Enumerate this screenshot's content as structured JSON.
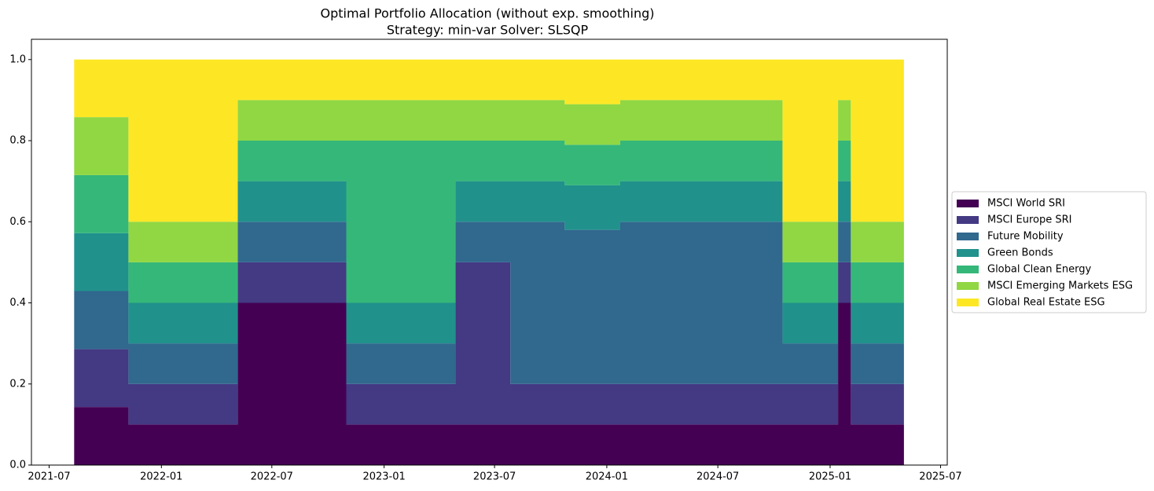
{
  "chart_data": {
    "type": "stacked-step-area",
    "title": "Optimal Portfolio Allocation (without exp. smoothing)",
    "subtitle": "Strategy: min-var Solver: SLSQP",
    "x": [
      "2021-08-11",
      "2021-11-08",
      "2022-05-06",
      "2022-10-31",
      "2023-04-28",
      "2023-07-27",
      "2023-10-24",
      "2024-01-23",
      "2024-10-15",
      "2025-01-14",
      "2025-02-04",
      "2025-05-02"
    ],
    "series": [
      {
        "name": "MSCI World SRI",
        "color": "#440154",
        "values": [
          0.143,
          0.1,
          0.4,
          0.1,
          0.1,
          0.1,
          0.1,
          0.1,
          0.1,
          0.4,
          0.1,
          0.1
        ]
      },
      {
        "name": "MSCI Europe SRI",
        "color": "#443983",
        "values": [
          0.143,
          0.1,
          0.1,
          0.1,
          0.4,
          0.1,
          0.1,
          0.1,
          0.1,
          0.1,
          0.1,
          0.1
        ]
      },
      {
        "name": "Future Mobility",
        "color": "#31688e",
        "values": [
          0.143,
          0.1,
          0.1,
          0.1,
          0.1,
          0.4,
          0.38,
          0.4,
          0.1,
          0.1,
          0.1,
          0.1
        ]
      },
      {
        "name": "Green Bonds",
        "color": "#21918c",
        "values": [
          0.143,
          0.1,
          0.1,
          0.1,
          0.1,
          0.1,
          0.11,
          0.1,
          0.1,
          0.1,
          0.1,
          0.1
        ]
      },
      {
        "name": "Global Clean Energy",
        "color": "#35b779",
        "values": [
          0.143,
          0.1,
          0.1,
          0.4,
          0.1,
          0.1,
          0.1,
          0.1,
          0.1,
          0.1,
          0.1,
          0.1
        ]
      },
      {
        "name": "MSCI Emerging Markets ESG",
        "color": "#90d743",
        "values": [
          0.143,
          0.1,
          0.1,
          0.1,
          0.1,
          0.1,
          0.1,
          0.1,
          0.1,
          0.1,
          0.1,
          0.1
        ]
      },
      {
        "name": "Global Real Estate ESG",
        "color": "#fde725",
        "values": [
          0.142,
          0.4,
          0.1,
          0.1,
          0.1,
          0.1,
          0.11,
          0.1,
          0.4,
          0.1,
          0.4,
          0.4
        ]
      }
    ],
    "xlim": [
      "2021-06-02",
      "2025-07-12"
    ],
    "xticks": [
      "2021-07",
      "2022-01",
      "2022-07",
      "2023-01",
      "2023-07",
      "2024-01",
      "2024-07",
      "2025-01",
      "2025-07"
    ],
    "ylim": [
      0,
      1.05
    ],
    "yticks": [
      {
        "value": 0,
        "label": "0.0"
      },
      {
        "value": 0.2,
        "label": "0.2"
      },
      {
        "value": 0.4,
        "label": "0.4"
      },
      {
        "value": 0.6,
        "label": "0.6"
      },
      {
        "value": 0.8,
        "label": "0.8"
      },
      {
        "value": 1,
        "label": "1.0"
      }
    ],
    "legend": "right"
  }
}
